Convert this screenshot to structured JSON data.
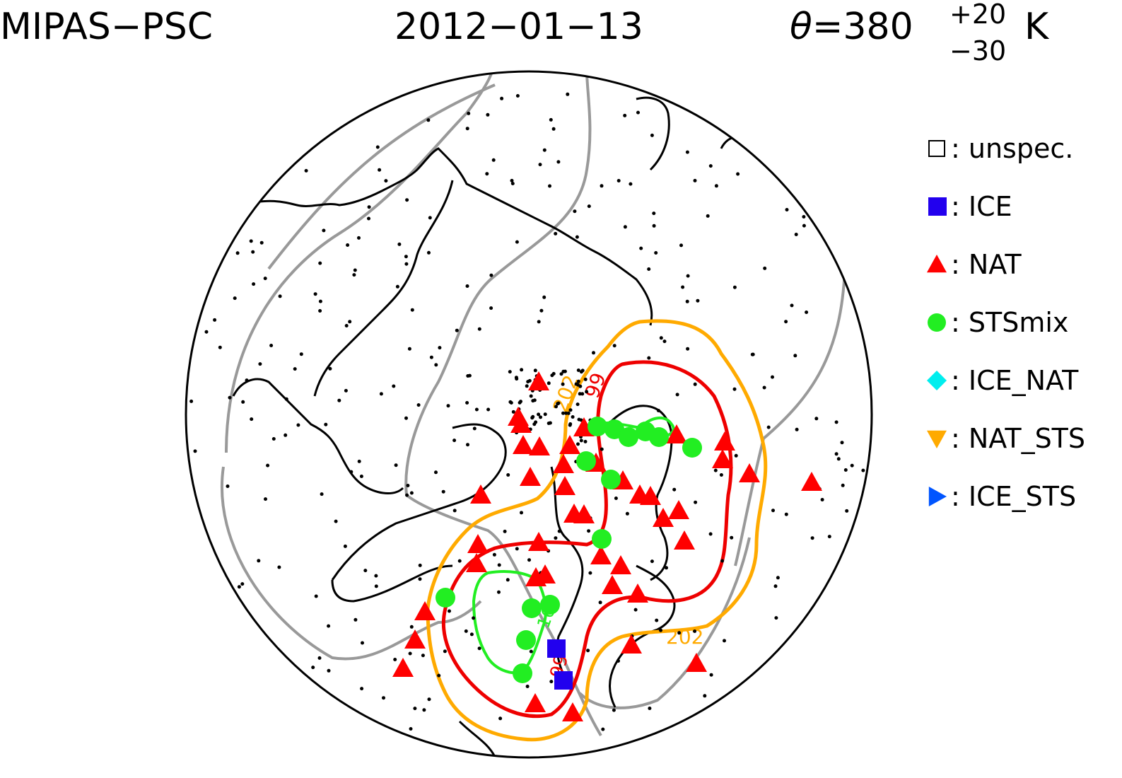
{
  "header": {
    "instrument": "MIPAS−PSC",
    "date": "2012−01−13",
    "theta_symbol": "θ",
    "theta_eq": "=380",
    "theta_plus": "+20",
    "theta_minus": "−30",
    "theta_unit": "K"
  },
  "legend": [
    {
      "symbol": "open-square",
      "label": ": unspec.",
      "color": "#000000"
    },
    {
      "symbol": "square",
      "label": ": ICE",
      "color": "#2200ee"
    },
    {
      "symbol": "triangle-up",
      "label": ": NAT",
      "color": "#ff0000"
    },
    {
      "symbol": "circle",
      "label": ": STSmix",
      "color": "#22ee22"
    },
    {
      "symbol": "diamond",
      "label": ": ICE_NAT",
      "color": "#00eeee"
    },
    {
      "symbol": "triangle-down",
      "label": ": NAT_STS",
      "color": "#ffaa00"
    },
    {
      "symbol": "triangle-right",
      "label": ": ICE_STS",
      "color": "#0055ff"
    }
  ],
  "contour_labels": {
    "orange": "202",
    "red": "99",
    "green": "16"
  },
  "colors": {
    "nat": "#ff0000",
    "ice": "#2200ee",
    "sts": "#22ee22",
    "contour_orange": "#ffaa00",
    "contour_red": "#ee0000",
    "contour_green": "#22ee22",
    "grid_lines": "#999999",
    "coast": "#000000"
  },
  "observations": {
    "NAT": [
      [
        762,
        540
      ],
      [
        733,
        590
      ],
      [
        737,
        600
      ],
      [
        740,
        630
      ],
      [
        763,
        632
      ],
      [
        750,
        675
      ],
      [
        680,
        700
      ],
      [
        797,
        657
      ],
      [
        799,
        688
      ],
      [
        812,
        727
      ],
      [
        826,
        728
      ],
      [
        806,
        630
      ],
      [
        826,
        605
      ],
      [
        843,
        655
      ],
      [
        881,
        680
      ],
      [
        905,
        700
      ],
      [
        920,
        702
      ],
      [
        938,
        733
      ],
      [
        960,
        722
      ],
      [
        968,
        765
      ],
      [
        957,
        615
      ],
      [
        1025,
        625
      ],
      [
        1022,
        650
      ],
      [
        1060,
        670
      ],
      [
        1148,
        682
      ],
      [
        676,
        770
      ],
      [
        674,
        797
      ],
      [
        762,
        767
      ],
      [
        758,
        817
      ],
      [
        771,
        813
      ],
      [
        850,
        786
      ],
      [
        878,
        800
      ],
      [
        866,
        828
      ],
      [
        902,
        840
      ],
      [
        601,
        865
      ],
      [
        587,
        905
      ],
      [
        570,
        945
      ],
      [
        893,
        912
      ],
      [
        985,
        938
      ],
      [
        757,
        995
      ],
      [
        810,
        1008
      ]
    ],
    "ICE": [
      [
        787,
        917
      ],
      [
        797,
        962
      ]
    ],
    "STS": [
      [
        845,
        603
      ],
      [
        869,
        607
      ],
      [
        889,
        618
      ],
      [
        913,
        610
      ],
      [
        932,
        618
      ],
      [
        979,
        633
      ],
      [
        829,
        652
      ],
      [
        864,
        678
      ],
      [
        851,
        762
      ],
      [
        630,
        845
      ],
      [
        752,
        860
      ],
      [
        778,
        855
      ],
      [
        744,
        905
      ],
      [
        739,
        952
      ]
    ]
  }
}
